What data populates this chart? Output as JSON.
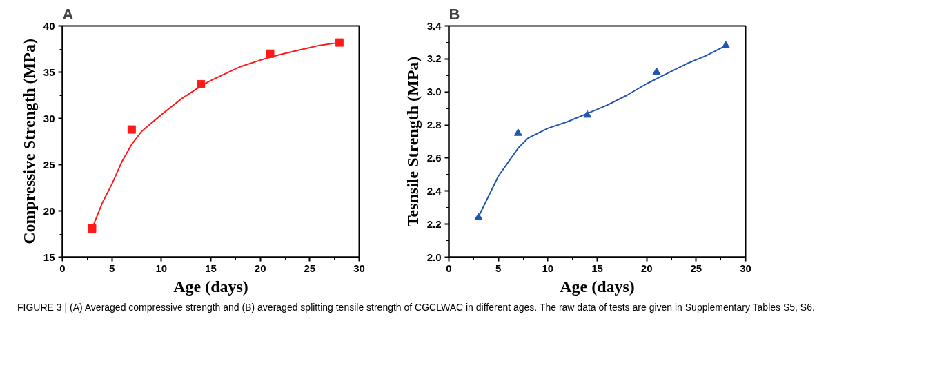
{
  "chart_data": [
    {
      "type": "scatter",
      "title": "A",
      "xlabel": "Age (days)",
      "ylabel": "Compressive Strength (MPa)",
      "xlim": [
        0,
        30
      ],
      "xticks": [
        0,
        5,
        10,
        15,
        20,
        25,
        30
      ],
      "ylim": [
        15,
        40
      ],
      "yticks": [
        15,
        20,
        25,
        30,
        35,
        40
      ],
      "grid": false,
      "series": [
        {
          "marker": "square",
          "color": "#ff1a1a",
          "x": [
            3,
            7,
            14,
            21,
            28
          ],
          "values": [
            18.1,
            28.8,
            33.7,
            37.0,
            38.2
          ]
        },
        {
          "type": "line",
          "marker": "none",
          "color": "#ff1a1a",
          "x": [
            3,
            4,
            5,
            6,
            7,
            8,
            10,
            12,
            14,
            15,
            16,
            18,
            20,
            22,
            24,
            25,
            26,
            28
          ],
          "values": [
            18.1,
            20.8,
            22.9,
            25.3,
            27.2,
            28.6,
            30.4,
            32.1,
            33.5,
            34.1,
            34.6,
            35.6,
            36.3,
            36.9,
            37.4,
            37.65,
            37.9,
            38.2
          ]
        }
      ]
    },
    {
      "type": "scatter",
      "title": "B",
      "xlabel": "Age (days)",
      "ylabel": "Tesnsile Strength (MPa)",
      "xlim": [
        0,
        30
      ],
      "xticks": [
        0,
        5,
        10,
        15,
        20,
        25,
        30
      ],
      "ylim": [
        2.0,
        3.4
      ],
      "yticks": [
        {
          "value": 2.0,
          "label": "2.0"
        },
        2.2,
        2.4,
        2.6,
        2.8,
        {
          "value": 3.0,
          "label": "3.0"
        },
        3.2,
        3.4
      ],
      "grid": false,
      "annotations": [
        "FIGURE 3 | (A) Averaged compressive strength and (B) averaged splitting tensile strength of CGCLWAC in different ages. The raw data of tests are given in Supplementary Tables S5, S6."
      ],
      "series": [
        {
          "marker": "triangle",
          "color": "#2255b0",
          "x": [
            3,
            7,
            14,
            21,
            28
          ],
          "values": [
            2.24,
            2.75,
            2.86,
            3.12,
            3.28
          ]
        },
        {
          "type": "line",
          "marker": "none",
          "color": "#2255b0",
          "x": [
            3,
            5,
            7,
            8,
            10,
            12,
            14,
            16,
            18,
            20,
            22,
            24,
            26,
            28
          ],
          "values": [
            2.245,
            2.49,
            2.66,
            2.72,
            2.78,
            2.82,
            2.87,
            2.92,
            2.98,
            3.05,
            3.11,
            3.17,
            3.22,
            3.28
          ]
        }
      ]
    }
  ]
}
